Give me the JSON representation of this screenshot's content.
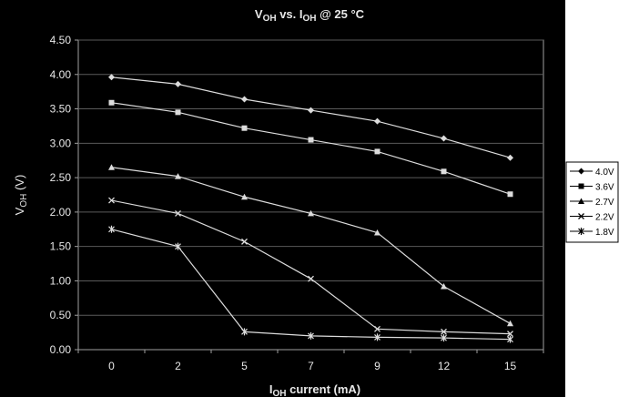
{
  "chart_data": {
    "type": "line",
    "title": {
      "main": "V",
      "sub1": "OH",
      "mid": " vs. I",
      "sub2": "OH",
      "tail": " @ 25 °C"
    },
    "xlabel": {
      "main": "I",
      "sub": "OH",
      "tail": " current (mA)"
    },
    "ylabel": {
      "main": "V",
      "sub": "OH",
      "tail": " (V)"
    },
    "categories": [
      "0",
      "2",
      "5",
      "7",
      "9",
      "12",
      "15"
    ],
    "y_ticks": [
      "0.00",
      "0.50",
      "1.00",
      "1.50",
      "2.00",
      "2.50",
      "3.00",
      "3.50",
      "4.00",
      "4.50"
    ],
    "ylim": [
      0,
      4.5
    ],
    "grid": true,
    "legend_position": "right",
    "colors": {
      "background": "#000000",
      "gridline": "#5a5a5a",
      "series": "#dcdcdc",
      "axis_text": "#e8e8e8",
      "legend_text": "#000000"
    },
    "series": [
      {
        "name": "4.0V",
        "marker": "diamond",
        "values": [
          3.96,
          3.86,
          3.64,
          3.48,
          3.32,
          3.07,
          2.79
        ]
      },
      {
        "name": "3.6V",
        "marker": "square",
        "values": [
          3.59,
          3.45,
          3.22,
          3.05,
          2.88,
          2.59,
          2.26
        ]
      },
      {
        "name": "2.7V",
        "marker": "triangle",
        "values": [
          2.65,
          2.52,
          2.22,
          1.98,
          1.7,
          0.92,
          0.38
        ]
      },
      {
        "name": "2.2V",
        "marker": "x",
        "values": [
          2.17,
          1.98,
          1.57,
          1.03,
          0.3,
          0.26,
          0.23
        ]
      },
      {
        "name": "1.8V",
        "marker": "star",
        "values": [
          1.75,
          1.5,
          0.26,
          0.2,
          0.18,
          0.17,
          0.15
        ]
      }
    ]
  }
}
